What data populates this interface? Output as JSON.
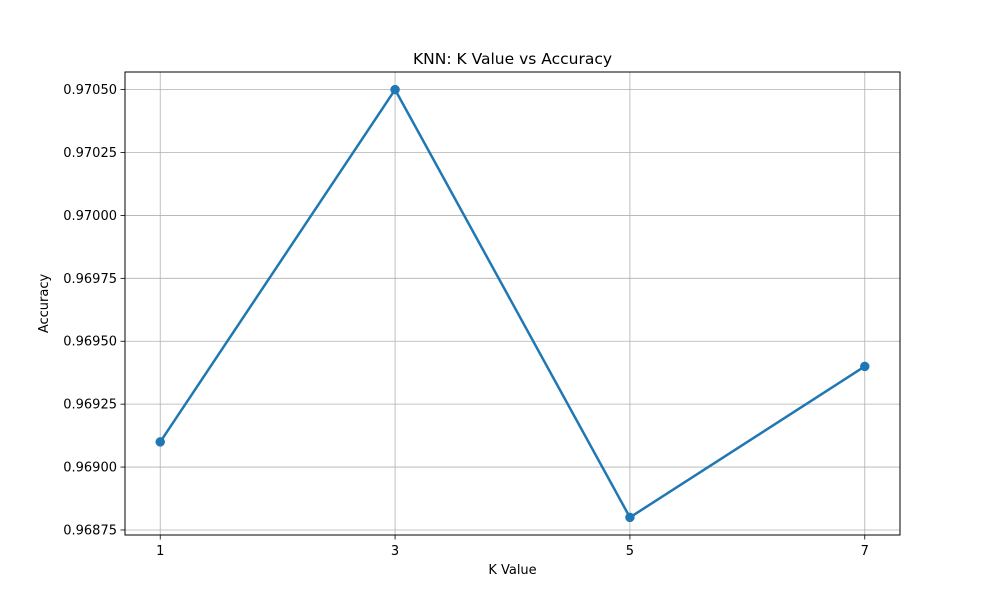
{
  "chart_data": {
    "type": "line",
    "title": "KNN: K Value vs Accuracy",
    "xlabel": "K Value",
    "ylabel": "Accuracy",
    "x": [
      1,
      3,
      5,
      7
    ],
    "x_tick_labels": [
      "1",
      "3",
      "5",
      "7"
    ],
    "series": [
      {
        "values": [
          0.9691,
          0.9705,
          0.9688,
          0.9694
        ],
        "color": "#1f77b4",
        "marker": "circle"
      }
    ],
    "xlim": [
      0.7,
      7.3
    ],
    "ylim": [
      0.96873,
      0.97057
    ],
    "y_ticks": [
      0.96875,
      0.969,
      0.96925,
      0.9695,
      0.96975,
      0.97,
      0.97025,
      0.9705
    ],
    "y_tick_labels": [
      "0.96875",
      "0.96900",
      "0.96925",
      "0.96950",
      "0.96975",
      "0.97000",
      "0.97025",
      "0.97050"
    ],
    "grid": true
  }
}
